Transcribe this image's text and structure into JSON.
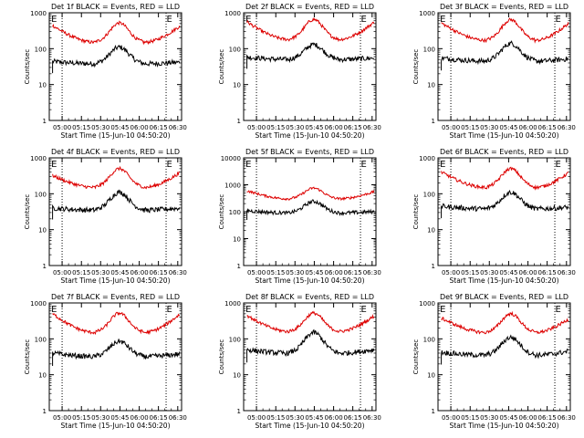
{
  "chart_data": [
    {
      "type": "line",
      "title": "Det 1f BLACK = Events, RED = LLD",
      "xlabel": "Start Time (15-Jun-10 04:50:20)",
      "ylabel": "Counts/sec",
      "yscale": "log",
      "ylim": [
        1,
        1000
      ],
      "xlim": [
        0,
        100
      ],
      "ytick_labels": [
        "1",
        "10",
        "100",
        "1000"
      ],
      "ytick_values": [
        1,
        10,
        100,
        1000
      ],
      "xtick_labels": [
        "05:00",
        "05:15",
        "05:30",
        "05:45",
        "06:00",
        "06:15",
        "06:30"
      ],
      "xtick_values": [
        9.7,
        24.3,
        38.8,
        53.4,
        68,
        82.5,
        97.1
      ],
      "vlines": [
        9.7,
        88.3
      ],
      "markers": [
        {
          "text": "E",
          "x": 1.5
        },
        {
          "text": "E",
          "x": 88.6
        }
      ],
      "series": [
        {
          "color": "#000000",
          "start": 44,
          "floor": 38,
          "peak": 110,
          "end": 42,
          "peak_pos": 53
        },
        {
          "color": "#dd0000",
          "start": 440,
          "floor": 150,
          "peak": 520,
          "end": 420,
          "peak_pos": 53
        }
      ]
    },
    {
      "type": "line",
      "title": "Det 2f BLACK = Events, RED = LLD",
      "xlabel": "Start Time (15-Jun-10 04:50:20)",
      "ylabel": "Counts/sec",
      "yscale": "log",
      "ylim": [
        1,
        1000
      ],
      "xlim": [
        0,
        100
      ],
      "ytick_labels": [
        "1",
        "10",
        "100",
        "1000"
      ],
      "ytick_values": [
        1,
        10,
        100,
        1000
      ],
      "xtick_labels": [
        "05:00",
        "05:15",
        "05:30",
        "05:45",
        "06:00",
        "06:15",
        "06:30"
      ],
      "xtick_values": [
        9.7,
        24.3,
        38.8,
        53.4,
        68,
        82.5,
        97.1
      ],
      "vlines": [
        9.7,
        88.3
      ],
      "markers": [
        {
          "text": "E",
          "x": 1.5
        },
        {
          "text": "E",
          "x": 88.6
        }
      ],
      "series": [
        {
          "color": "#000000",
          "start": 58,
          "floor": 50,
          "peak": 130,
          "end": 55,
          "peak_pos": 53
        },
        {
          "color": "#dd0000",
          "start": 560,
          "floor": 180,
          "peak": 650,
          "end": 540,
          "peak_pos": 53
        }
      ]
    },
    {
      "type": "line",
      "title": "Det 3f BLACK = Events, RED = LLD",
      "xlabel": "Start Time (15-Jun-10 04:50:20)",
      "ylabel": "Counts/sec",
      "yscale": "log",
      "ylim": [
        1,
        1000
      ],
      "xlim": [
        0,
        100
      ],
      "ytick_labels": [
        "1",
        "10",
        "100",
        "1000"
      ],
      "ytick_values": [
        1,
        10,
        100,
        1000
      ],
      "xtick_labels": [
        "05:00",
        "05:15",
        "05:30",
        "05:45",
        "06:00",
        "06:15",
        "06:30"
      ],
      "xtick_values": [
        9.7,
        24.3,
        38.8,
        53.4,
        68,
        82.5,
        97.1
      ],
      "vlines": [
        9.7,
        88.3
      ],
      "markers": [
        {
          "text": "E",
          "x": 1.5
        },
        {
          "text": "E",
          "x": 88.6
        }
      ],
      "series": [
        {
          "color": "#000000",
          "start": 55,
          "floor": 45,
          "peak": 140,
          "end": 52,
          "peak_pos": 55
        },
        {
          "color": "#dd0000",
          "start": 520,
          "floor": 170,
          "peak": 640,
          "end": 500,
          "peak_pos": 55
        }
      ]
    },
    {
      "type": "line",
      "title": "Det 4f BLACK = Events, RED = LLD",
      "xlabel": "Start Time (15-Jun-10 04:50:20)",
      "ylabel": "Counts/sec",
      "yscale": "log",
      "ylim": [
        1,
        1000
      ],
      "xlim": [
        0,
        100
      ],
      "ytick_labels": [
        "1",
        "10",
        "100",
        "1000"
      ],
      "ytick_values": [
        1,
        10,
        100,
        1000
      ],
      "xtick_labels": [
        "05:00",
        "05:15",
        "05:30",
        "05:45",
        "06:00",
        "06:15",
        "06:30"
      ],
      "xtick_values": [
        9.7,
        24.3,
        38.8,
        53.4,
        68,
        82.5,
        97.1
      ],
      "vlines": [
        9.7,
        88.3
      ],
      "markers": [
        {
          "text": "E",
          "x": 1.5
        },
        {
          "text": "E",
          "x": 88.6
        }
      ],
      "series": [
        {
          "color": "#000000",
          "start": 40,
          "floor": 35,
          "peak": 110,
          "end": 40,
          "peak_pos": 53
        },
        {
          "color": "#dd0000",
          "start": 320,
          "floor": 150,
          "peak": 500,
          "end": 380,
          "peak_pos": 53
        }
      ]
    },
    {
      "type": "line",
      "title": "Det 5f BLACK = Events, RED = LLD",
      "xlabel": "Start Time (15-Jun-10 04:50:20)",
      "ylabel": "Counts/sec",
      "yscale": "log",
      "ylim": [
        1,
        10000
      ],
      "xlim": [
        0,
        100
      ],
      "ytick_labels": [
        "1",
        "10",
        "100",
        "1000",
        "10000"
      ],
      "ytick_values": [
        1,
        10,
        100,
        1000,
        10000
      ],
      "xtick_labels": [
        "05:00",
        "05:15",
        "05:30",
        "05:45",
        "06:00",
        "06:15",
        "06:30"
      ],
      "xtick_values": [
        9.7,
        24.3,
        38.8,
        53.4,
        68,
        82.5,
        97.1
      ],
      "vlines": [
        9.7,
        88.3
      ],
      "markers": [
        {
          "text": "E",
          "x": 1.5
        },
        {
          "text": "E",
          "x": 88.6
        }
      ],
      "series": [
        {
          "color": "#000000",
          "start": 110,
          "floor": 90,
          "peak": 240,
          "end": 100,
          "peak_pos": 53
        },
        {
          "color": "#dd0000",
          "start": 600,
          "floor": 300,
          "peak": 750,
          "end": 550,
          "peak_pos": 53
        }
      ]
    },
    {
      "type": "line",
      "title": "Det 6f BLACK = Events, RED = LLD",
      "xlabel": "Start Time (15-Jun-10 04:50:20)",
      "ylabel": "Counts/sec",
      "yscale": "log",
      "ylim": [
        1,
        1000
      ],
      "xlim": [
        0,
        100
      ],
      "ytick_labels": [
        "1",
        "10",
        "100",
        "1000"
      ],
      "ytick_values": [
        1,
        10,
        100,
        1000
      ],
      "xtick_labels": [
        "05:00",
        "05:15",
        "05:30",
        "05:45",
        "06:00",
        "06:15",
        "06:30"
      ],
      "xtick_values": [
        9.7,
        24.3,
        38.8,
        53.4,
        68,
        82.5,
        97.1
      ],
      "vlines": [
        9.7,
        88.3
      ],
      "markers": [
        {
          "text": "E",
          "x": 1.5
        },
        {
          "text": "E",
          "x": 88.6
        }
      ],
      "series": [
        {
          "color": "#000000",
          "start": 45,
          "floor": 38,
          "peak": 110,
          "end": 42,
          "peak_pos": 55
        },
        {
          "color": "#dd0000",
          "start": 400,
          "floor": 150,
          "peak": 500,
          "end": 380,
          "peak_pos": 55
        }
      ]
    },
    {
      "type": "line",
      "title": "Det 7f BLACK = Events, RED = LLD",
      "xlabel": "Start Time (15-Jun-10 04:50:20)",
      "ylabel": "Counts/sec",
      "yscale": "log",
      "ylim": [
        1,
        1000
      ],
      "xlim": [
        0,
        100
      ],
      "ytick_labels": [
        "1",
        "10",
        "100",
        "1000"
      ],
      "ytick_values": [
        1,
        10,
        100,
        1000
      ],
      "xtick_labels": [
        "05:00",
        "05:15",
        "05:30",
        "05:45",
        "06:00",
        "06:15",
        "06:30"
      ],
      "xtick_values": [
        9.7,
        24.3,
        38.8,
        53.4,
        68,
        82.5,
        97.1
      ],
      "vlines": [
        9.7,
        88.3
      ],
      "markers": [
        {
          "text": "E",
          "x": 1.5
        },
        {
          "text": "E",
          "x": 88.6
        }
      ],
      "series": [
        {
          "color": "#000000",
          "start": 40,
          "floor": 32,
          "peak": 85,
          "end": 38,
          "peak_pos": 53
        },
        {
          "color": "#dd0000",
          "start": 500,
          "floor": 150,
          "peak": 520,
          "end": 480,
          "peak_pos": 53
        }
      ]
    },
    {
      "type": "line",
      "title": "Det 8f BLACK = Events, RED = LLD",
      "xlabel": "Start Time (15-Jun-10 04:50:20)",
      "ylabel": "Counts/sec",
      "yscale": "log",
      "ylim": [
        1,
        1000
      ],
      "xlim": [
        0,
        100
      ],
      "ytick_labels": [
        "1",
        "10",
        "100",
        "1000"
      ],
      "ytick_values": [
        1,
        10,
        100,
        1000
      ],
      "xtick_labels": [
        "05:00",
        "05:15",
        "05:30",
        "05:45",
        "06:00",
        "06:15",
        "06:30"
      ],
      "xtick_values": [
        9.7,
        24.3,
        38.8,
        53.4,
        68,
        82.5,
        97.1
      ],
      "vlines": [
        9.7,
        88.3
      ],
      "markers": [
        {
          "text": "E",
          "x": 1.5
        },
        {
          "text": "E",
          "x": 88.6
        }
      ],
      "series": [
        {
          "color": "#000000",
          "start": 50,
          "floor": 40,
          "peak": 150,
          "end": 50,
          "peak_pos": 53
        },
        {
          "color": "#dd0000",
          "start": 450,
          "floor": 160,
          "peak": 520,
          "end": 430,
          "peak_pos": 53
        }
      ]
    },
    {
      "type": "line",
      "title": "Det 9f BLACK = Events, RED = LLD",
      "xlabel": "Start Time (15-Jun-10 04:50:20)",
      "ylabel": "Counts/sec",
      "yscale": "log",
      "ylim": [
        1,
        1000
      ],
      "xlim": [
        0,
        100
      ],
      "ytick_labels": [
        "1",
        "10",
        "100",
        "1000"
      ],
      "ytick_values": [
        1,
        10,
        100,
        1000
      ],
      "xtick_labels": [
        "05:00",
        "05:15",
        "05:30",
        "05:45",
        "06:00",
        "06:15",
        "06:30"
      ],
      "xtick_values": [
        9.7,
        24.3,
        38.8,
        53.4,
        68,
        82.5,
        97.1
      ],
      "vlines": [
        9.7,
        88.3
      ],
      "markers": [
        {
          "text": "E",
          "x": 1.5
        },
        {
          "text": "E",
          "x": 88.6
        }
      ],
      "series": [
        {
          "color": "#000000",
          "start": 42,
          "floor": 35,
          "peak": 110,
          "end": 45,
          "peak_pos": 55
        },
        {
          "color": "#dd0000",
          "start": 380,
          "floor": 150,
          "peak": 500,
          "end": 350,
          "peak_pos": 55
        }
      ]
    }
  ]
}
